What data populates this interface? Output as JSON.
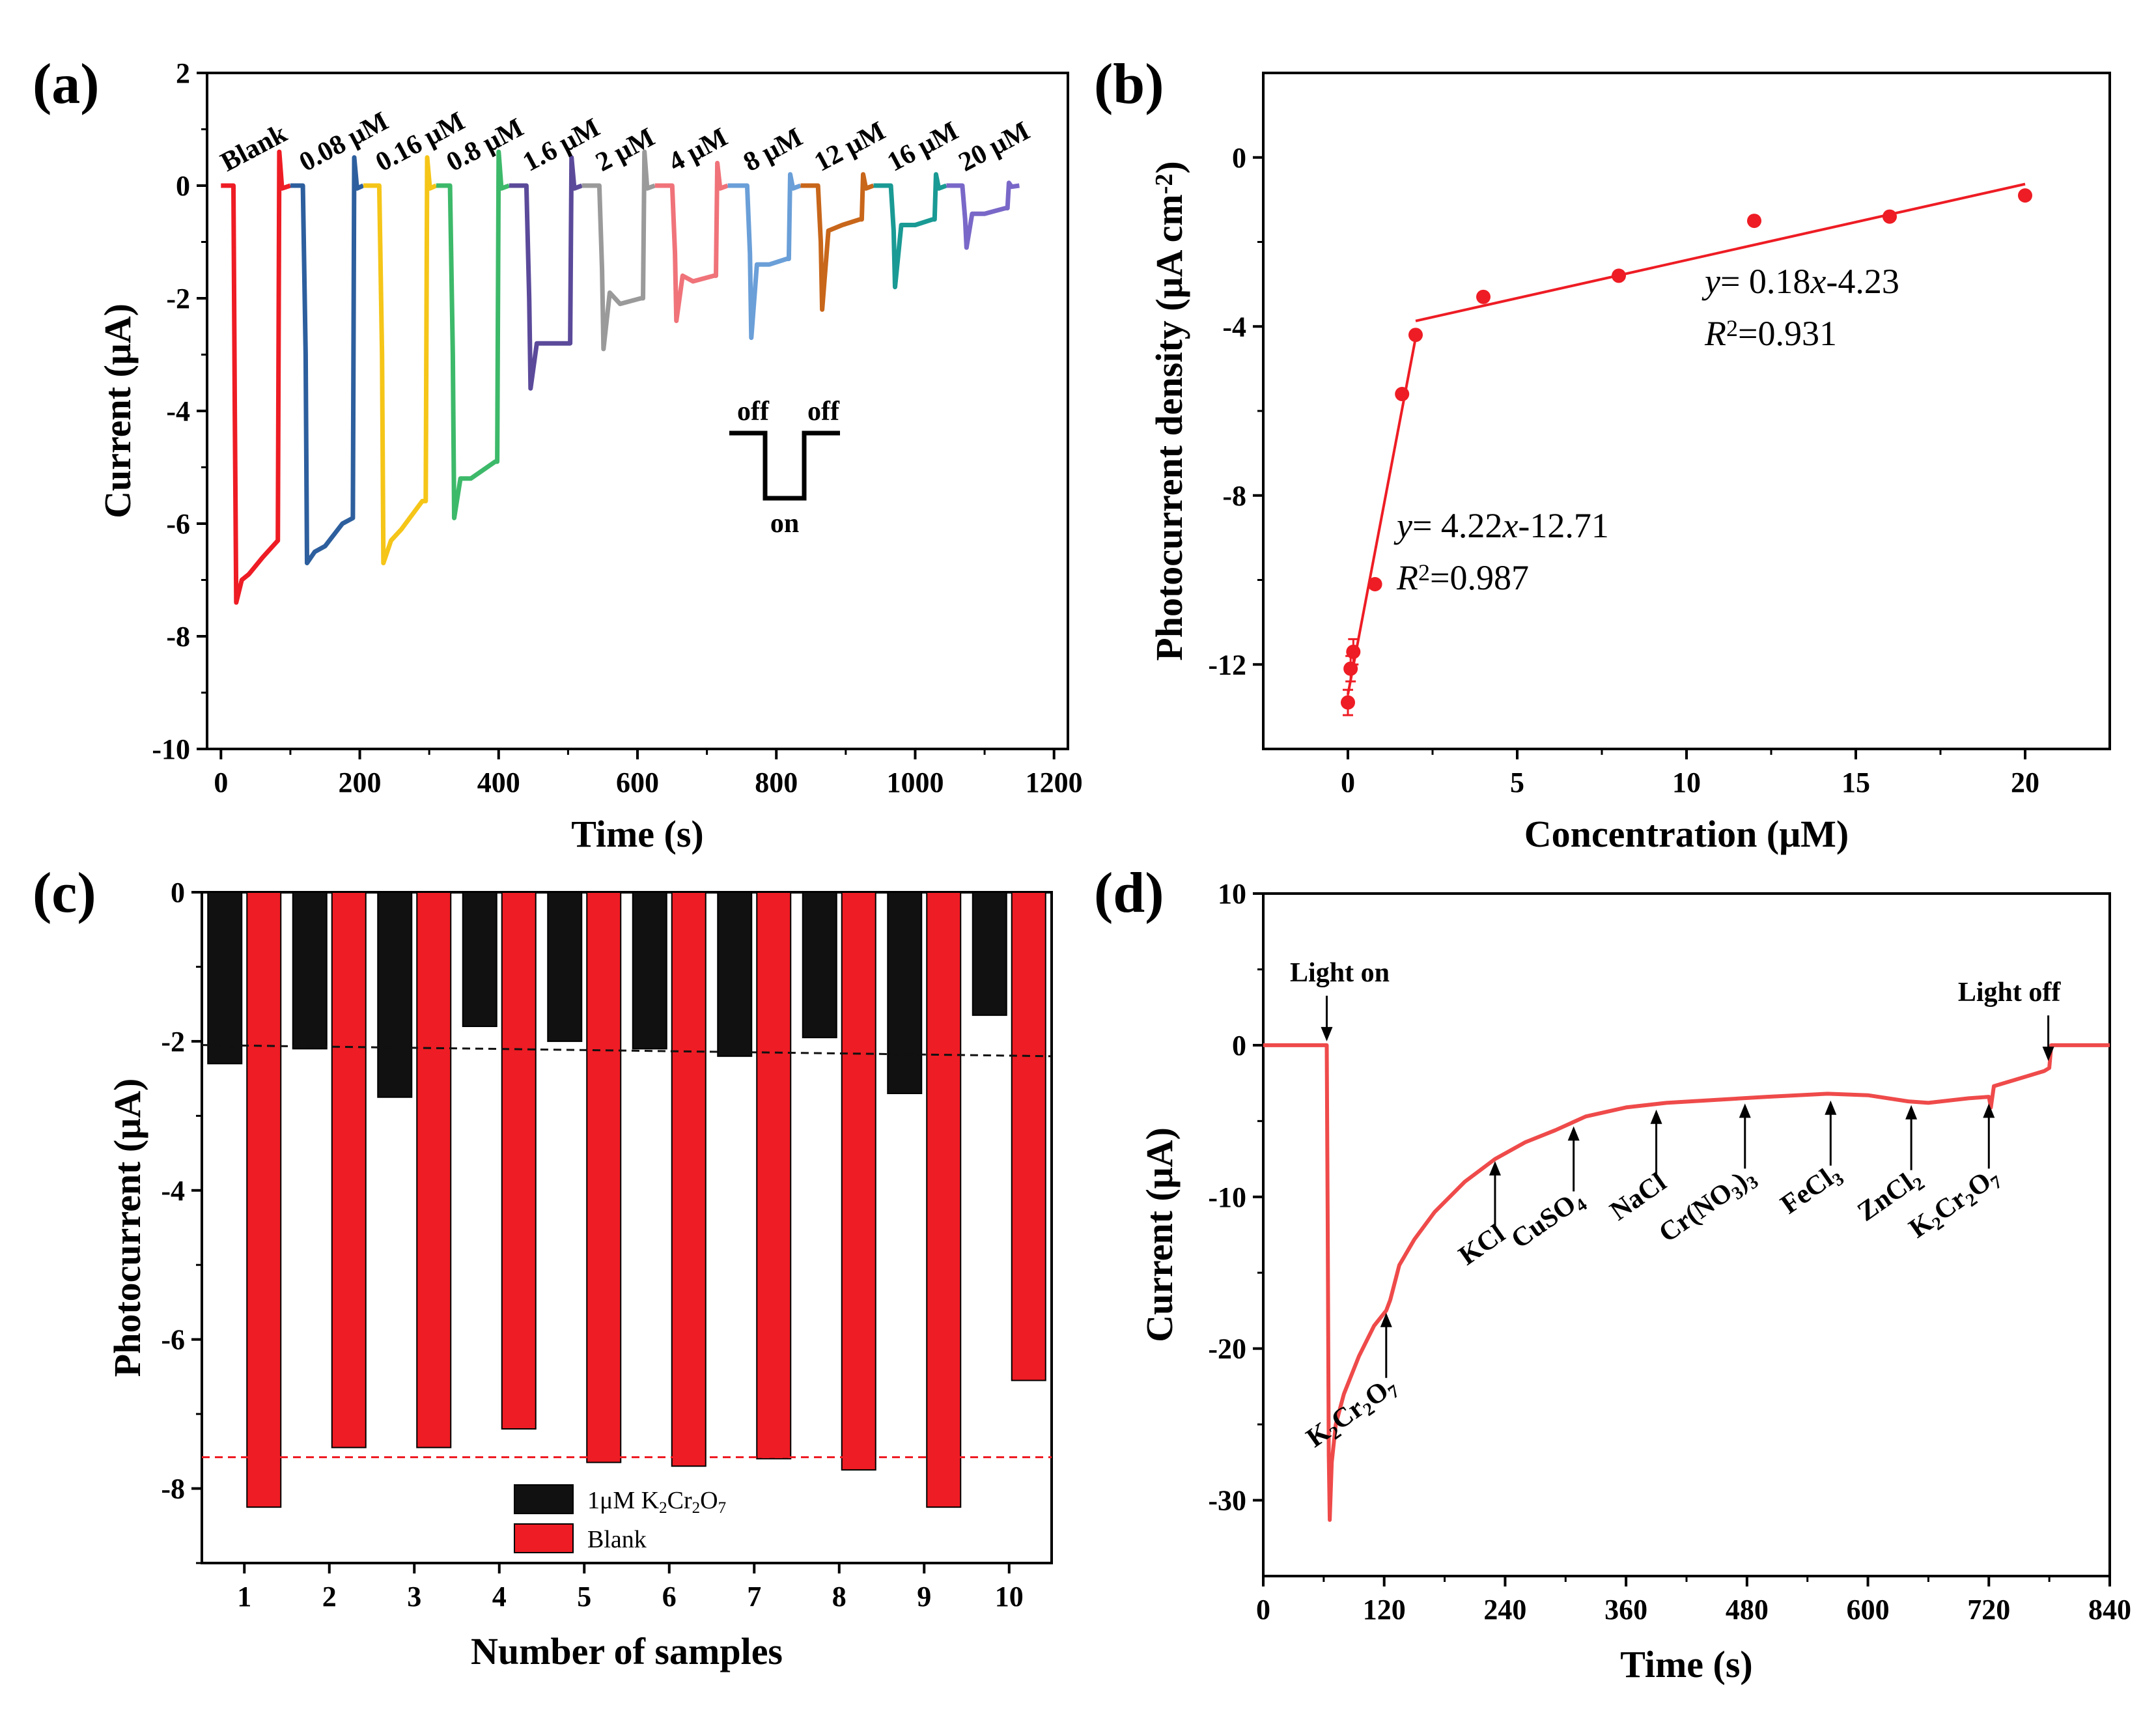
{
  "figure": {
    "panel_labels": [
      "(a)",
      "(b)",
      "(c)",
      "(d)"
    ]
  },
  "colors": {
    "red": "#ee1c24",
    "blue": "#2d5f9e",
    "yellow": "#f5c518",
    "green": "#3db96a",
    "purple": "#5b4a9a",
    "gray": "#9a9a9a",
    "salmon": "#f0737a",
    "lightblue": "#6a9fd8",
    "orange": "#c8661a",
    "teal": "#1a9a94",
    "violet": "#7a68c8",
    "black": "#111111",
    "d_line": "#ef4a4a"
  },
  "chart_data": [
    {
      "id": "a",
      "type": "line",
      "xlabel": "Time (s)",
      "ylabel": "Current (μA)",
      "xlim": [
        -20,
        1220
      ],
      "ylim": [
        -10,
        2
      ],
      "xticks": [
        0,
        200,
        400,
        600,
        800,
        1000,
        1200
      ],
      "yticks": [
        -10,
        -8,
        -6,
        -4,
        -2,
        0,
        2
      ],
      "series": [
        {
          "name": "Blank",
          "color_key": "red",
          "points": [
            [
              0,
              0
            ],
            [
              18,
              0
            ],
            [
              20,
              -4
            ],
            [
              22,
              -7.4
            ],
            [
              30,
              -7.0
            ],
            [
              40,
              -6.9
            ],
            [
              60,
              -6.6
            ],
            [
              82,
              -6.3
            ],
            [
              84,
              0.6
            ],
            [
              88,
              -0.05
            ],
            [
              100,
              0
            ]
          ]
        },
        {
          "name": "0.08 μM",
          "color_key": "blue",
          "points": [
            [
              100,
              0
            ],
            [
              118,
              0
            ],
            [
              122,
              -3
            ],
            [
              124,
              -6.7
            ],
            [
              135,
              -6.5
            ],
            [
              150,
              -6.4
            ],
            [
              175,
              -6.0
            ],
            [
              190,
              -5.9
            ],
            [
              192,
              0.5
            ],
            [
              196,
              -0.05
            ],
            [
              205,
              0
            ]
          ]
        },
        {
          "name": "0.16 μM",
          "color_key": "yellow",
          "points": [
            [
              205,
              0
            ],
            [
              228,
              0
            ],
            [
              232,
              -3
            ],
            [
              234,
              -6.7
            ],
            [
              245,
              -6.3
            ],
            [
              260,
              -6.1
            ],
            [
              290,
              -5.6
            ],
            [
              295,
              -5.6
            ],
            [
              297,
              0.5
            ],
            [
              301,
              -0.05
            ],
            [
              310,
              0
            ]
          ]
        },
        {
          "name": "0.8 μM",
          "color_key": "green",
          "points": [
            [
              310,
              0
            ],
            [
              330,
              0
            ],
            [
              334,
              -3
            ],
            [
              336,
              -5.9
            ],
            [
              345,
              -5.2
            ],
            [
              360,
              -5.2
            ],
            [
              395,
              -4.9
            ],
            [
              398,
              -4.9
            ],
            [
              400,
              0.6
            ],
            [
              404,
              -0.05
            ],
            [
              415,
              0
            ]
          ]
        },
        {
          "name": "1.6 μM",
          "color_key": "purple",
          "points": [
            [
              415,
              0
            ],
            [
              440,
              0
            ],
            [
              444,
              -2
            ],
            [
              446,
              -3.6
            ],
            [
              455,
              -2.8
            ],
            [
              470,
              -2.8
            ],
            [
              500,
              -2.8
            ],
            [
              503,
              -2.8
            ],
            [
              505,
              0.5
            ],
            [
              509,
              -0.05
            ],
            [
              520,
              0
            ]
          ]
        },
        {
          "name": "2 μM",
          "color_key": "gray",
          "points": [
            [
              520,
              0
            ],
            [
              545,
              0
            ],
            [
              549,
              -1.5
            ],
            [
              551,
              -2.9
            ],
            [
              560,
              -1.9
            ],
            [
              575,
              -2.1
            ],
            [
              605,
              -2.0
            ],
            [
              608,
              -2.0
            ],
            [
              610,
              0.6
            ],
            [
              614,
              -0.05
            ],
            [
              625,
              0
            ]
          ]
        },
        {
          "name": "4 μM",
          "color_key": "salmon",
          "points": [
            [
              625,
              0
            ],
            [
              650,
              0
            ],
            [
              654,
              -1.2
            ],
            [
              656,
              -2.4
            ],
            [
              665,
              -1.6
            ],
            [
              680,
              -1.7
            ],
            [
              710,
              -1.6
            ],
            [
              713,
              -1.6
            ],
            [
              715,
              0.4
            ],
            [
              719,
              -0.05
            ],
            [
              730,
              0
            ]
          ]
        },
        {
          "name": "8 μM",
          "color_key": "lightblue",
          "points": [
            [
              730,
              0
            ],
            [
              758,
              0
            ],
            [
              762,
              -1.2
            ],
            [
              764,
              -2.7
            ],
            [
              772,
              -1.4
            ],
            [
              790,
              -1.4
            ],
            [
              815,
              -1.3
            ],
            [
              818,
              -1.3
            ],
            [
              820,
              0.2
            ],
            [
              824,
              -0.05
            ],
            [
              835,
              0
            ]
          ]
        },
        {
          "name": "12 μM",
          "color_key": "orange",
          "points": [
            [
              835,
              0
            ],
            [
              860,
              0
            ],
            [
              864,
              -1
            ],
            [
              866,
              -2.2
            ],
            [
              875,
              -0.8
            ],
            [
              895,
              -0.7
            ],
            [
              920,
              -0.6
            ],
            [
              923,
              -0.6
            ],
            [
              925,
              0.2
            ],
            [
              929,
              -0.05
            ],
            [
              940,
              0
            ]
          ]
        },
        {
          "name": "16 μM",
          "color_key": "teal",
          "points": [
            [
              940,
              0
            ],
            [
              965,
              0
            ],
            [
              969,
              -0.8
            ],
            [
              971,
              -1.8
            ],
            [
              980,
              -0.7
            ],
            [
              1000,
              -0.7
            ],
            [
              1025,
              -0.6
            ],
            [
              1028,
              -0.6
            ],
            [
              1030,
              0.2
            ],
            [
              1034,
              -0.05
            ],
            [
              1045,
              0
            ]
          ]
        },
        {
          "name": "20 μM",
          "color_key": "violet",
          "points": [
            [
              1045,
              0
            ],
            [
              1068,
              0
            ],
            [
              1072,
              -0.6
            ],
            [
              1074,
              -1.1
            ],
            [
              1082,
              -0.5
            ],
            [
              1100,
              -0.5
            ],
            [
              1130,
              -0.4
            ],
            [
              1133,
              -0.4
            ],
            [
              1135,
              0.05
            ],
            [
              1139,
              -0.02
            ],
            [
              1150,
              0
            ]
          ]
        }
      ],
      "annotations": {
        "inset_off_left": "off",
        "inset_off_right": "off",
        "inset_on": "on"
      }
    },
    {
      "id": "b",
      "type": "scatter",
      "xlabel": "Concentration (μM)",
      "ylabel": "Photocurrent density (μA cm",
      "ylabel_sup": "-2",
      "ylabel_end": ")",
      "xlim": [
        -2.5,
        22.5
      ],
      "ylim": [
        -14,
        2
      ],
      "xticks": [
        0,
        5,
        10,
        15,
        20
      ],
      "yticks": [
        -12,
        -8,
        -4,
        0
      ],
      "points": [
        {
          "x": 0,
          "y": -12.9,
          "err": 0.3
        },
        {
          "x": 0.08,
          "y": -12.1,
          "err": 0.3
        },
        {
          "x": 0.16,
          "y": -11.7,
          "err": 0.3
        },
        {
          "x": 0.8,
          "y": -10.1,
          "err": 0
        },
        {
          "x": 1.6,
          "y": -5.6,
          "err": 0
        },
        {
          "x": 2,
          "y": -4.2,
          "err": 0
        },
        {
          "x": 4,
          "y": -3.3,
          "err": 0
        },
        {
          "x": 8,
          "y": -2.8,
          "err": 0
        },
        {
          "x": 12,
          "y": -1.5,
          "err": 0
        },
        {
          "x": 16,
          "y": -1.4,
          "err": 0
        },
        {
          "x": 20,
          "y": -0.9,
          "err": 0
        }
      ],
      "fits": [
        {
          "slope": 4.22,
          "intercept": -12.71,
          "x_range": [
            0,
            2
          ],
          "eq_prefix": "y",
          "eq_body": "= 4.22",
          "eq_var": "x",
          "eq_tail": "-12.71",
          "r2_prefix": "R",
          "r2_sup": "2",
          "r2_value": "=0.987"
        },
        {
          "slope": 0.18,
          "intercept": -4.23,
          "x_range": [
            2,
            20
          ],
          "eq_prefix": "y",
          "eq_body": "= 0.18",
          "eq_var": "x",
          "eq_tail": "-4.23",
          "r2_prefix": "R",
          "r2_sup": "2",
          "r2_value": "=0.931"
        }
      ]
    },
    {
      "id": "c",
      "type": "bar",
      "xlabel": "Number of samples",
      "ylabel": "Photocurrent (μA)",
      "xlim": [
        0.5,
        10.5
      ],
      "ylim": [
        -9,
        0
      ],
      "categories": [
        "1",
        "2",
        "3",
        "4",
        "5",
        "6",
        "7",
        "8",
        "9",
        "10"
      ],
      "yticks": [
        -8,
        -6,
        -4,
        -2,
        0
      ],
      "series": [
        {
          "name": "1μM K2Cr2O7",
          "color_key": "black",
          "values": [
            -2.3,
            -2.1,
            -2.75,
            -1.8,
            -2.0,
            -2.1,
            -2.2,
            -1.95,
            -2.7,
            -1.65
          ]
        },
        {
          "name": "Blank",
          "color_key": "red",
          "values": [
            -8.25,
            -7.45,
            -7.45,
            -7.2,
            -7.65,
            -7.7,
            -7.6,
            -7.75,
            -8.25,
            -6.55
          ]
        }
      ],
      "legend": {
        "item1_prefix": "1μM K",
        "item1_sub1": "2",
        "item1_mid": "Cr",
        "item1_sub2": "2",
        "item1_end": "O",
        "item1_sub3": "7",
        "item2": "Blank"
      },
      "reference_lines": [
        {
          "color_key": "black",
          "y_start": -2.05,
          "y_end": -2.2
        },
        {
          "color_key": "red",
          "y_start": -7.58,
          "y_end": -7.58
        }
      ]
    },
    {
      "id": "d",
      "type": "line",
      "xlabel": "Time (s)",
      "ylabel": "Current (μA)",
      "xlim": [
        0,
        840
      ],
      "ylim": [
        -35,
        10
      ],
      "xticks": [
        0,
        120,
        240,
        360,
        480,
        600,
        720,
        840
      ],
      "yticks": [
        -30,
        -20,
        -10,
        0,
        10
      ],
      "points": [
        [
          0,
          0
        ],
        [
          63,
          0
        ],
        [
          64,
          -12
        ],
        [
          65,
          -27
        ],
        [
          66,
          -31.3
        ],
        [
          68,
          -27.5
        ],
        [
          72,
          -25
        ],
        [
          80,
          -23
        ],
        [
          95,
          -20.5
        ],
        [
          110,
          -18.5
        ],
        [
          122,
          -17.5
        ],
        [
          126,
          -16.8
        ],
        [
          135,
          -14.5
        ],
        [
          150,
          -12.8
        ],
        [
          170,
          -11
        ],
        [
          200,
          -9
        ],
        [
          230,
          -7.5
        ],
        [
          260,
          -6.4
        ],
        [
          290,
          -5.6
        ],
        [
          320,
          -4.7
        ],
        [
          360,
          -4.1
        ],
        [
          400,
          -3.8
        ],
        [
          450,
          -3.6
        ],
        [
          500,
          -3.4
        ],
        [
          560,
          -3.2
        ],
        [
          600,
          -3.3
        ],
        [
          640,
          -3.7
        ],
        [
          660,
          -3.8
        ],
        [
          700,
          -3.5
        ],
        [
          720,
          -3.4
        ],
        [
          722,
          -4.1
        ],
        [
          725,
          -2.7
        ],
        [
          745,
          -2.3
        ],
        [
          760,
          -2.0
        ],
        [
          775,
          -1.7
        ],
        [
          780,
          -1.5
        ],
        [
          782,
          0
        ],
        [
          800,
          0
        ],
        [
          840,
          0
        ]
      ],
      "annotations": [
        {
          "label": "Light on",
          "x": 63,
          "tip_y": 0,
          "side": "above"
        },
        {
          "label": "Light off",
          "x": 779,
          "tip_y": -1.3,
          "side": "above"
        },
        {
          "label": "K2Cr2O7",
          "x": 122,
          "tip_y": -17.3,
          "side": "below"
        },
        {
          "label": "KCl",
          "x": 230,
          "tip_y": -7.3,
          "side": "below"
        },
        {
          "label": "CuSO4",
          "x": 308,
          "tip_y": -5.0,
          "side": "below"
        },
        {
          "label": "NaCl",
          "x": 390,
          "tip_y": -3.9,
          "side": "below"
        },
        {
          "label": "Cr(NO3)3",
          "x": 478,
          "tip_y": -3.5,
          "side": "below"
        },
        {
          "label": "FeCl3",
          "x": 563,
          "tip_y": -3.3,
          "side": "below"
        },
        {
          "label": "ZnCl2",
          "x": 643,
          "tip_y": -3.6,
          "side": "below"
        },
        {
          "label": "K2Cr2O7",
          "x": 720,
          "tip_y": -3.5,
          "side": "below"
        }
      ],
      "labels": {
        "light_on": "Light on",
        "light_off": "Light off"
      }
    }
  ]
}
